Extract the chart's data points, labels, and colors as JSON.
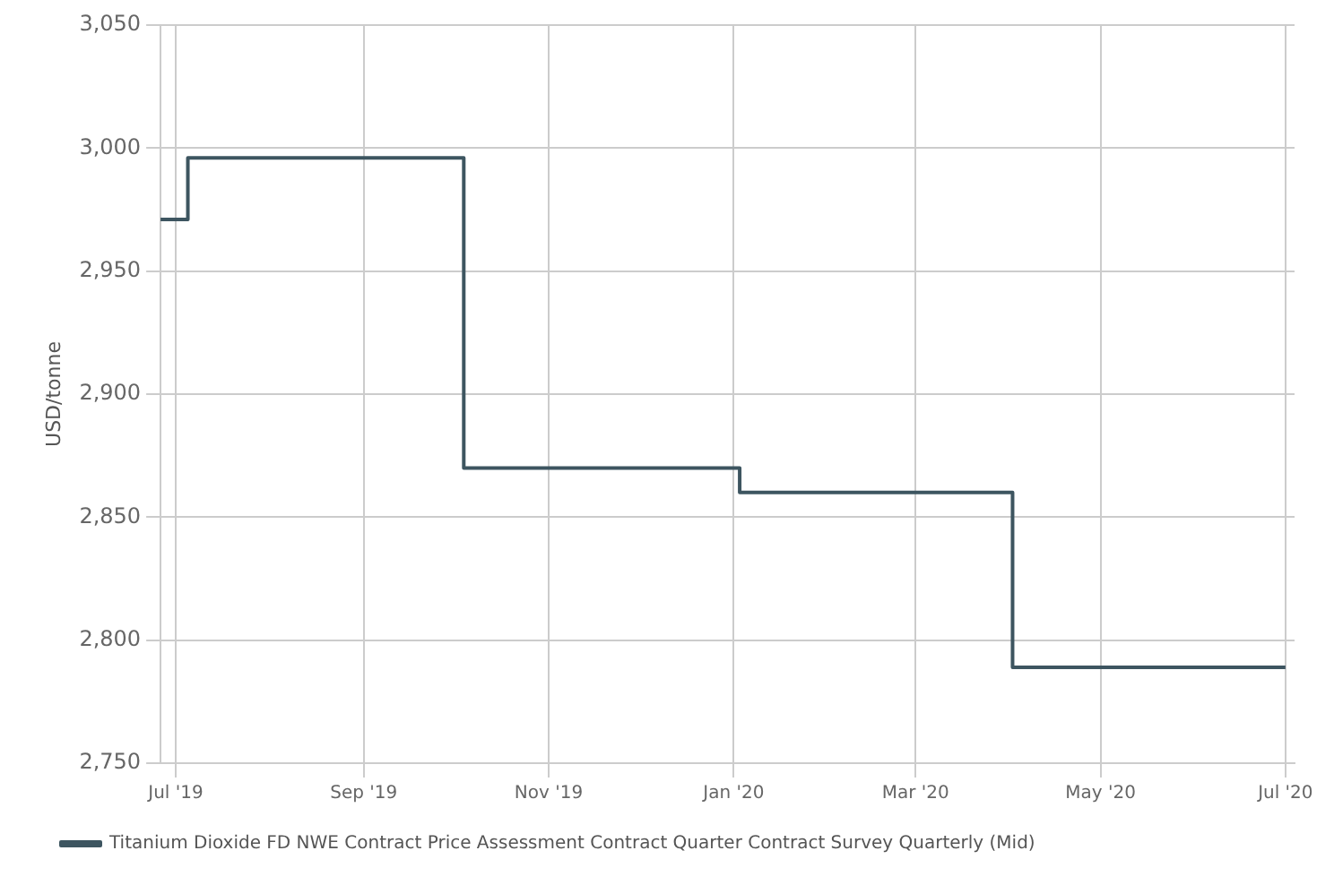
{
  "chart_data": {
    "type": "step",
    "ylabel": "USD/tonne",
    "x": [
      "2019-06-26",
      "2019-07-05",
      "2019-10-04",
      "2020-01-03",
      "2020-04-02",
      "2020-07-01"
    ],
    "series": [
      {
        "name": "Titanium Dioxide FD NWE Contract Price Assessment Contract Quarter Contract Survey Quarterly (Mid)",
        "color": "#3d5560",
        "values": [
          2971,
          2996,
          2870,
          2860,
          2789,
          2789
        ]
      }
    ],
    "xlim": [
      "2019-06-26",
      "2020-07-04"
    ],
    "xticks": [
      {
        "value": "2019-07",
        "label": "Jul '19"
      },
      {
        "value": "2019-09",
        "label": "Sep '19"
      },
      {
        "value": "2019-11",
        "label": "Nov '19"
      },
      {
        "value": "2020-01",
        "label": "Jan '20"
      },
      {
        "value": "2020-03",
        "label": "Mar '20"
      },
      {
        "value": "2020-05",
        "label": "May '20"
      },
      {
        "value": "2020-07",
        "label": "Jul '20"
      }
    ],
    "ylim": [
      2750,
      3050
    ],
    "yticks": [
      {
        "value": 2750,
        "label": "2,750"
      },
      {
        "value": 2800,
        "label": "2,800"
      },
      {
        "value": 2850,
        "label": "2,850"
      },
      {
        "value": 2900,
        "label": "2,900"
      },
      {
        "value": 2950,
        "label": "2,950"
      },
      {
        "value": 3000,
        "label": "3,000"
      },
      {
        "value": 3050,
        "label": "3,050"
      }
    ],
    "grid": true,
    "legend": "bottom",
    "marker": "none",
    "line_style": "solid"
  }
}
